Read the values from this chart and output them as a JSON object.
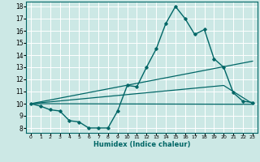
{
  "xlabel": "Humidex (Indice chaleur)",
  "bg_color": "#cce8e5",
  "grid_color": "#ffffff",
  "line_color": "#006666",
  "xlim": [
    -0.5,
    23.5
  ],
  "ylim": [
    7.6,
    18.4
  ],
  "xticks": [
    0,
    1,
    2,
    3,
    4,
    5,
    6,
    7,
    8,
    9,
    10,
    11,
    12,
    13,
    14,
    15,
    16,
    17,
    18,
    19,
    20,
    21,
    22,
    23
  ],
  "yticks": [
    8,
    9,
    10,
    11,
    12,
    13,
    14,
    15,
    16,
    17,
    18
  ],
  "curve1_x": [
    0,
    1,
    2,
    3,
    4,
    5,
    6,
    7,
    8,
    9,
    10,
    11,
    12,
    13,
    14,
    15,
    16,
    17,
    18,
    19,
    20,
    21,
    22,
    23
  ],
  "curve1_y": [
    10.0,
    9.8,
    9.5,
    9.4,
    8.6,
    8.5,
    8.0,
    8.0,
    8.0,
    9.4,
    11.5,
    11.4,
    13.0,
    14.5,
    16.6,
    18.0,
    17.0,
    15.7,
    16.1,
    13.7,
    13.0,
    10.9,
    10.2,
    10.1
  ],
  "curve2_x": [
    0,
    23
  ],
  "curve2_y": [
    10.0,
    13.5
  ],
  "curve3_x": [
    0,
    23
  ],
  "curve3_y": [
    10.0,
    9.95
  ],
  "curve4_x": [
    0,
    20,
    23
  ],
  "curve4_y": [
    10.0,
    11.5,
    10.0
  ]
}
